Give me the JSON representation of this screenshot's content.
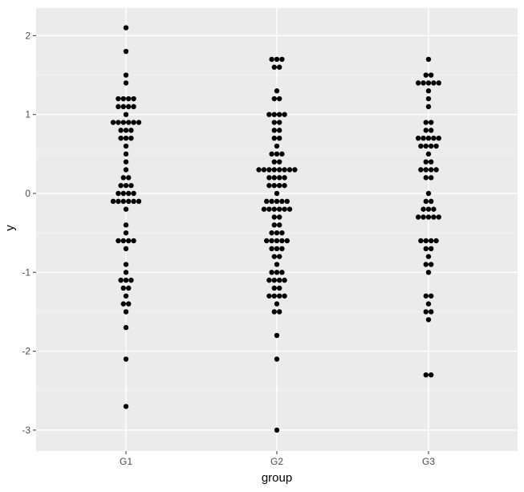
{
  "chart_data": {
    "type": "scatter",
    "subtype": "dotplot",
    "title": "",
    "xlabel": "group",
    "ylabel": "y",
    "categories": [
      "G1",
      "G2",
      "G3"
    ],
    "ylim": [
      -3.3,
      2.2
    ],
    "y_ticks": [
      2,
      1,
      0,
      -1,
      -2,
      -3
    ],
    "y_tick_labels": [
      "2",
      "1",
      "0",
      "-1",
      "-2",
      "-3"
    ],
    "grid": true,
    "legend": "none",
    "colors": {
      "panel_background": "#ebebeb",
      "major_grid": "#ffffff",
      "minor_grid": "#f5f5f5",
      "point": "#000000",
      "tick_text": "#4d4d4d",
      "tick_mark": "#333333"
    },
    "series": [
      {
        "category": "G1",
        "points": [
          {
            "y": 2.1,
            "count": 1
          },
          {
            "y": 1.8,
            "count": 1
          },
          {
            "y": 1.5,
            "count": 1
          },
          {
            "y": 1.4,
            "count": 1
          },
          {
            "y": 1.2,
            "count": 4
          },
          {
            "y": 1.1,
            "count": 4
          },
          {
            "y": 1.0,
            "count": 1
          },
          {
            "y": 0.9,
            "count": 6
          },
          {
            "y": 0.8,
            "count": 3
          },
          {
            "y": 0.7,
            "count": 3
          },
          {
            "y": 0.6,
            "count": 1
          },
          {
            "y": 0.5,
            "count": 1
          },
          {
            "y": 0.4,
            "count": 1
          },
          {
            "y": 0.3,
            "count": 1
          },
          {
            "y": 0.2,
            "count": 2
          },
          {
            "y": 0.1,
            "count": 3
          },
          {
            "y": 0.0,
            "count": 4
          },
          {
            "y": -0.1,
            "count": 6
          },
          {
            "y": -0.2,
            "count": 1
          },
          {
            "y": -0.4,
            "count": 1
          },
          {
            "y": -0.5,
            "count": 1
          },
          {
            "y": -0.6,
            "count": 4
          },
          {
            "y": -0.7,
            "count": 1
          },
          {
            "y": -0.9,
            "count": 1
          },
          {
            "y": -1.0,
            "count": 1
          },
          {
            "y": -1.1,
            "count": 3
          },
          {
            "y": -1.2,
            "count": 2
          },
          {
            "y": -1.3,
            "count": 1
          },
          {
            "y": -1.4,
            "count": 2
          },
          {
            "y": -1.5,
            "count": 1
          },
          {
            "y": -1.7,
            "count": 1
          },
          {
            "y": -2.1,
            "count": 1
          },
          {
            "y": -2.7,
            "count": 1
          }
        ]
      },
      {
        "category": "G2",
        "points": [
          {
            "y": 1.7,
            "count": 3
          },
          {
            "y": 1.6,
            "count": 2
          },
          {
            "y": 1.3,
            "count": 1
          },
          {
            "y": 1.2,
            "count": 2
          },
          {
            "y": 1.0,
            "count": 4
          },
          {
            "y": 0.9,
            "count": 2
          },
          {
            "y": 0.8,
            "count": 2
          },
          {
            "y": 0.7,
            "count": 2
          },
          {
            "y": 0.6,
            "count": 1
          },
          {
            "y": 0.5,
            "count": 3
          },
          {
            "y": 0.4,
            "count": 2
          },
          {
            "y": 0.3,
            "count": 8
          },
          {
            "y": 0.2,
            "count": 4
          },
          {
            "y": 0.1,
            "count": 4
          },
          {
            "y": 0.0,
            "count": 1
          },
          {
            "y": -0.1,
            "count": 5
          },
          {
            "y": -0.2,
            "count": 6
          },
          {
            "y": -0.3,
            "count": 2
          },
          {
            "y": -0.4,
            "count": 2
          },
          {
            "y": -0.5,
            "count": 3
          },
          {
            "y": -0.6,
            "count": 5
          },
          {
            "y": -0.7,
            "count": 3
          },
          {
            "y": -0.8,
            "count": 2
          },
          {
            "y": -0.9,
            "count": 1
          },
          {
            "y": -1.0,
            "count": 3
          },
          {
            "y": -1.1,
            "count": 4
          },
          {
            "y": -1.2,
            "count": 2
          },
          {
            "y": -1.3,
            "count": 4
          },
          {
            "y": -1.4,
            "count": 1
          },
          {
            "y": -1.5,
            "count": 2
          },
          {
            "y": -1.8,
            "count": 1
          },
          {
            "y": -2.1,
            "count": 1
          },
          {
            "y": -3.0,
            "count": 1
          }
        ]
      },
      {
        "category": "G3",
        "points": [
          {
            "y": 1.7,
            "count": 1
          },
          {
            "y": 1.5,
            "count": 2
          },
          {
            "y": 1.4,
            "count": 5
          },
          {
            "y": 1.3,
            "count": 1
          },
          {
            "y": 1.2,
            "count": 1
          },
          {
            "y": 1.1,
            "count": 1
          },
          {
            "y": 0.9,
            "count": 2
          },
          {
            "y": 0.8,
            "count": 2
          },
          {
            "y": 0.7,
            "count": 5
          },
          {
            "y": 0.6,
            "count": 4
          },
          {
            "y": 0.5,
            "count": 1
          },
          {
            "y": 0.4,
            "count": 2
          },
          {
            "y": 0.3,
            "count": 4
          },
          {
            "y": 0.2,
            "count": 2
          },
          {
            "y": 0.0,
            "count": 1
          },
          {
            "y": -0.1,
            "count": 2
          },
          {
            "y": -0.2,
            "count": 3
          },
          {
            "y": -0.3,
            "count": 5
          },
          {
            "y": -0.6,
            "count": 4
          },
          {
            "y": -0.7,
            "count": 2
          },
          {
            "y": -0.8,
            "count": 1
          },
          {
            "y": -0.9,
            "count": 2
          },
          {
            "y": -1.0,
            "count": 1
          },
          {
            "y": -1.3,
            "count": 2
          },
          {
            "y": -1.4,
            "count": 1
          },
          {
            "y": -1.5,
            "count": 2
          },
          {
            "y": -1.6,
            "count": 1
          },
          {
            "y": -2.3,
            "count": 2
          }
        ]
      }
    ]
  }
}
